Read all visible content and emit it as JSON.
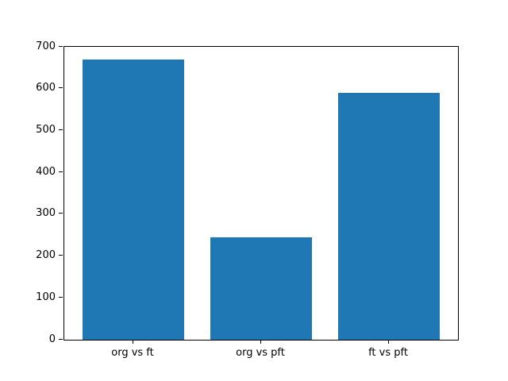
{
  "chart_data": {
    "type": "bar",
    "categories": [
      "org vs ft",
      "org vs pft",
      "ft vs pft"
    ],
    "values": [
      670,
      244,
      590
    ],
    "title": "",
    "xlabel": "",
    "ylabel": "",
    "ylim": [
      0,
      700
    ],
    "yticks": [
      0,
      100,
      200,
      300,
      400,
      500,
      600,
      700
    ],
    "bar_color": "#1f77b4",
    "background_color": "#ffffff",
    "spine_color": "#000000",
    "grid": false,
    "legend": null
  }
}
